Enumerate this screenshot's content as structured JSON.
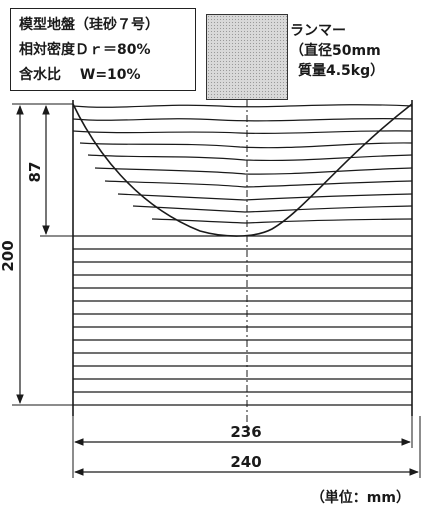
{
  "legend": {
    "line1": "模型地盤（珪砂７号）",
    "line2": "相対密度Ｄｒ＝80%",
    "line3": "含水比　 W=10%"
  },
  "rammer": {
    "name": "ランマー",
    "spec1": "（直径50mm",
    "spec2": "質量4.5kg）"
  },
  "dimensions": {
    "crater_depth": "87",
    "ground_depth": "200",
    "crater_width": "236",
    "box_width": "240"
  },
  "unit_note": "（単位：mm）"
}
